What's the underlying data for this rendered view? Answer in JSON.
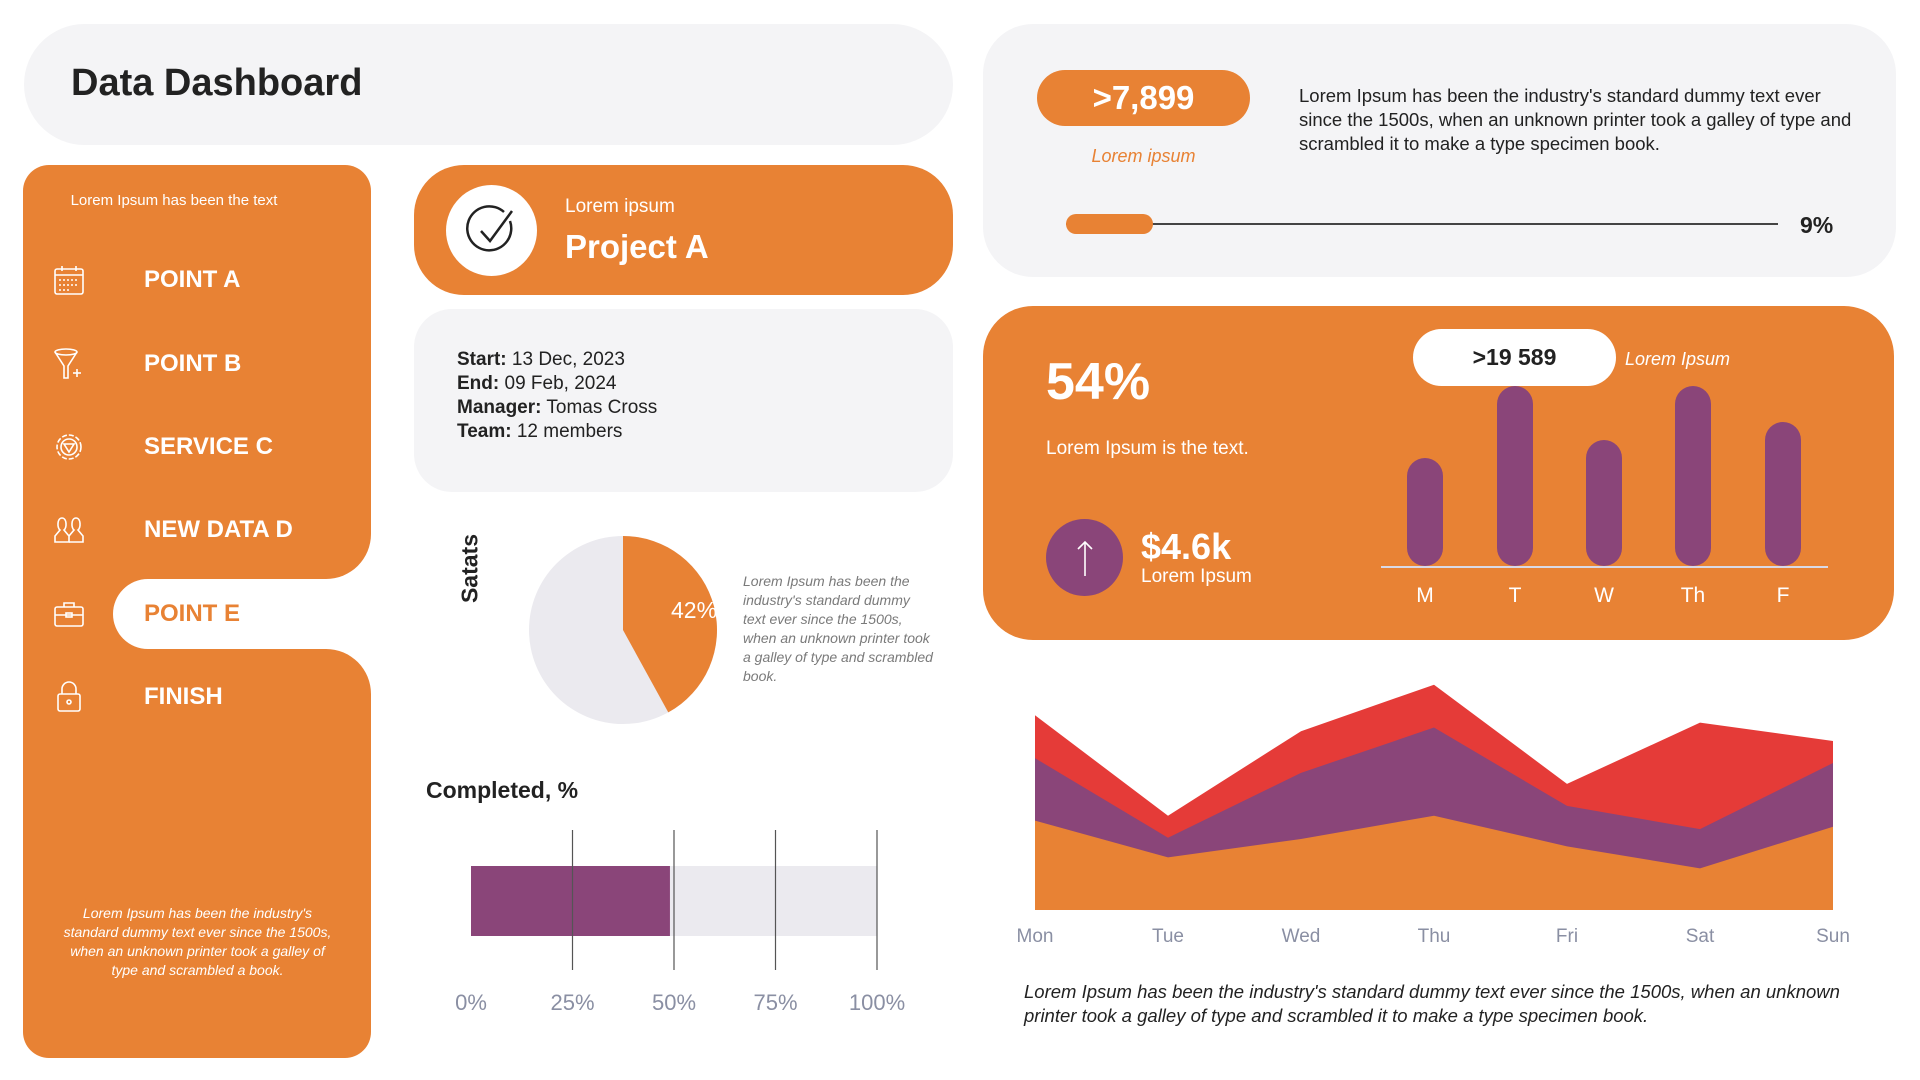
{
  "header": {
    "title": "Data Dashboard"
  },
  "sidebar": {
    "header_text": "Lorem Ipsum has been the text",
    "items": [
      {
        "label": "POINT A",
        "icon": "calendar-icon"
      },
      {
        "label": "POINT B",
        "icon": "funnel-plus-icon"
      },
      {
        "label": "SERVICE C",
        "icon": "gear-icon"
      },
      {
        "label": "NEW DATA D",
        "icon": "users-icon"
      },
      {
        "label": "POINT E",
        "icon": "briefcase-icon",
        "active": true
      },
      {
        "label": "FINISH",
        "icon": "lock-icon"
      }
    ],
    "footer_text": "Lorem Ipsum has been the industry's standard dummy text ever since the 1500s, when an unknown printer took a galley of type and scrambled  a book."
  },
  "project": {
    "subtitle": "Lorem ipsum",
    "title": "Project A",
    "icon": "check-circle-icon"
  },
  "info": {
    "start_label": "Start:",
    "start": " 13 Dec, 2023",
    "end_label": "End:",
    "end": " 09 Feb, 2024",
    "manager_label": "Manager:",
    "manager": " Tomas Cross",
    "team_label": "Team:",
    "team": " 12 members"
  },
  "top_right": {
    "pill_value": ">7,899",
    "pill_caption": "Lorem ipsum",
    "text": "Lorem Ipsum has been the industry's standard dummy text ever since the 1500s, when an unknown printer took a galley of type and scrambled it to make a type specimen book.",
    "progress_label": "9%",
    "progress": 9
  },
  "kpi": {
    "big": "54%",
    "sub": "Lorem Ipsum is the text.",
    "money": "$4.6k",
    "money_sub": "Lorem Ipsum",
    "arrow_icon": "arrow-up-icon",
    "pill_value": ">19 589",
    "pill_caption": "Lorem Ipsum"
  },
  "colors": {
    "orange": "#e88234",
    "purple": "#8a4579",
    "red": "#e53b38",
    "grey": "#ebeaef"
  },
  "chart_data": [
    {
      "type": "pie",
      "label": "Satats",
      "slices": [
        {
          "label": "42%",
          "value": 42,
          "color": "#e88234"
        },
        {
          "value": 58,
          "color": "#ebeaef"
        }
      ],
      "description": "Lorem Ipsum has been the industry's standard dummy text ever since the 1500s, when an unknown printer took a galley of type and scrambled book."
    },
    {
      "type": "bar",
      "title": "Completed, %",
      "orientation": "horizontal",
      "values": [
        49
      ],
      "xlim": [
        0,
        100
      ],
      "ticks": [
        "0%",
        "25%",
        "50%",
        "75%",
        "100%"
      ],
      "grid": true
    },
    {
      "type": "bar",
      "categories": [
        "M",
        "T",
        "W",
        "Th",
        "F"
      ],
      "values": [
        60,
        100,
        70,
        100,
        80
      ],
      "ylim": [
        0,
        100
      ]
    },
    {
      "type": "area",
      "stacked": true,
      "categories": [
        "Mon",
        "Tue",
        "Wed",
        "Thu",
        "Fri",
        "Sat",
        "Sun"
      ],
      "series": [
        {
          "color": "#e88234",
          "values": [
            73,
            43,
            58,
            77,
            52,
            34,
            68
          ]
        },
        {
          "color": "#8a4579",
          "values": [
            51,
            16,
            54,
            72,
            33,
            32,
            52
          ]
        },
        {
          "color": "#e53b38",
          "values": [
            35,
            18,
            34,
            35,
            18,
            87,
            18
          ]
        }
      ],
      "ylim": [
        0,
        200
      ],
      "caption": "Lorem Ipsum has been the industry's standard dummy text ever since the 1500s, when an unknown printer took a galley of type and scrambled it to make a type specimen book."
    }
  ]
}
